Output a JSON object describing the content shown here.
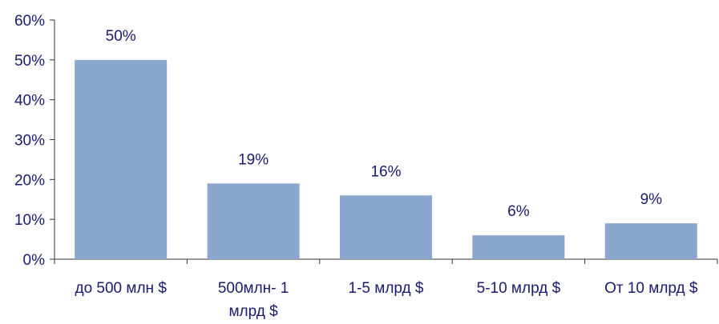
{
  "chart_data": {
    "type": "bar",
    "categories": [
      "до 500 млн $",
      "500млн- 1 млрд $",
      "1-5 млрд $",
      "5-10 млрд $",
      "От 10 млрд $"
    ],
    "category_lines": [
      [
        "до 500 млн $"
      ],
      [
        "500млн- 1",
        "млрд $"
      ],
      [
        "1-5 млрд $"
      ],
      [
        "5-10 млрд $"
      ],
      [
        "От 10 млрд $"
      ]
    ],
    "values": [
      50,
      19,
      16,
      6,
      9
    ],
    "data_labels": [
      "50%",
      "19%",
      "16%",
      "6%",
      "9%"
    ],
    "y_ticks": [
      0,
      10,
      20,
      30,
      40,
      50,
      60
    ],
    "y_tick_labels": [
      "0%",
      "10%",
      "20%",
      "30%",
      "40%",
      "50%",
      "60%"
    ],
    "ylim": [
      0,
      60
    ],
    "grid": false,
    "legend": "none",
    "title": "",
    "xlabel": "",
    "ylabel": "",
    "colors": {
      "bar": "#8BA7CF",
      "text": "#1A1A6E",
      "axis": "#333333"
    }
  }
}
